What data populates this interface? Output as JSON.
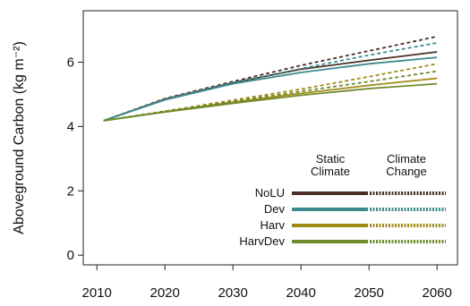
{
  "chart_data": {
    "type": "line",
    "title": "",
    "xlabel": "",
    "ylabel": "Aboveground Carbon (kg m⁻²)",
    "xlim": [
      2008,
      2063
    ],
    "ylim": [
      -0.3,
      7.6
    ],
    "x_ticks": [
      2010,
      2020,
      2030,
      2040,
      2050,
      2060
    ],
    "y_ticks": [
      0,
      2,
      4,
      6
    ],
    "grid": false,
    "legend_position": "bottom-right",
    "legend_headers": {
      "static": [
        "Static",
        "Climate"
      ],
      "change": [
        "Climate",
        "Change"
      ]
    },
    "scenarios": [
      "Static Climate",
      "Climate Change"
    ],
    "x": [
      2011,
      2020,
      2030,
      2040,
      2050,
      2060
    ],
    "series": [
      {
        "name": "NoLU",
        "color": "#4a3024",
        "static_climate": [
          4.18,
          4.85,
          5.36,
          5.78,
          6.06,
          6.32
        ],
        "climate_change": [
          4.18,
          4.87,
          5.4,
          5.9,
          6.35,
          6.8
        ]
      },
      {
        "name": "Dev",
        "color": "#3d8a8f",
        "static_climate": [
          4.18,
          4.83,
          5.33,
          5.68,
          5.95,
          6.15
        ],
        "climate_change": [
          4.18,
          4.85,
          5.36,
          5.8,
          6.22,
          6.6
        ]
      },
      {
        "name": "Harv",
        "color": "#a08a14",
        "static_climate": [
          4.18,
          4.46,
          4.76,
          5.03,
          5.28,
          5.5
        ],
        "climate_change": [
          4.18,
          4.48,
          4.82,
          5.16,
          5.55,
          5.95
        ]
      },
      {
        "name": "HarvDev",
        "color": "#6d8a2c",
        "static_climate": [
          4.18,
          4.45,
          4.72,
          4.97,
          5.18,
          5.33
        ],
        "climate_change": [
          4.18,
          4.47,
          4.78,
          5.09,
          5.4,
          5.72
        ]
      }
    ]
  }
}
